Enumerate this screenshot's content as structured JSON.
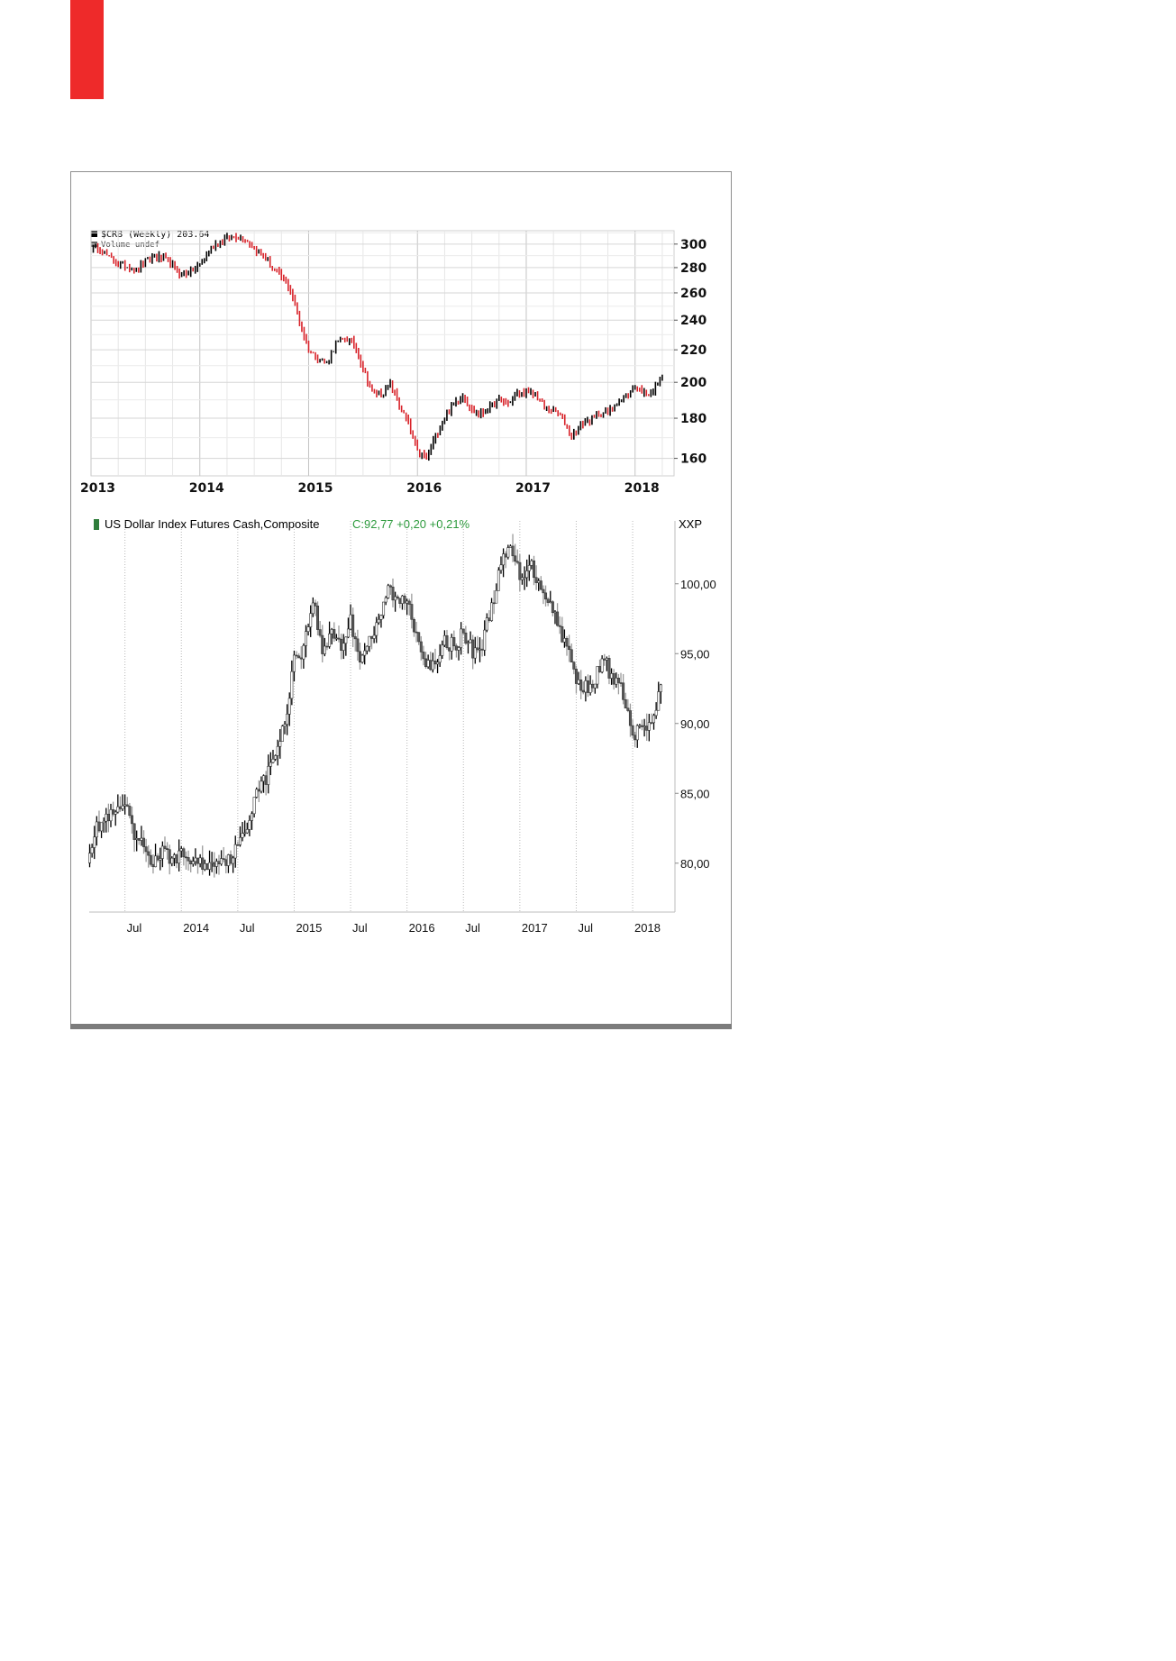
{
  "chart_data": [
    {
      "type": "candlestick",
      "legend": {
        "series": "$CRB (Weekly) 203.64",
        "volume": "Volume undef"
      },
      "x_ticks": [
        "2013",
        "2014",
        "2015",
        "2016",
        "2017",
        "2018"
      ],
      "y_ticks": [
        "300",
        "280",
        "260",
        "240",
        "220",
        "200",
        "180",
        "160"
      ],
      "ylim": [
        152,
        312
      ],
      "y_scale": "log",
      "grid": true,
      "colors": {
        "up": "#000000",
        "down": "#d8232a",
        "grid": "#dadada"
      },
      "series": [
        {
          "date": "2013-01",
          "value": 298
        },
        {
          "date": "2013-02",
          "value": 296
        },
        {
          "date": "2013-03",
          "value": 288
        },
        {
          "date": "2013-04",
          "value": 283
        },
        {
          "date": "2013-05",
          "value": 281
        },
        {
          "date": "2013-06",
          "value": 278
        },
        {
          "date": "2013-07",
          "value": 285
        },
        {
          "date": "2013-08",
          "value": 290
        },
        {
          "date": "2013-09",
          "value": 287
        },
        {
          "date": "2013-10",
          "value": 281
        },
        {
          "date": "2013-11",
          "value": 274
        },
        {
          "date": "2013-12",
          "value": 277
        },
        {
          "date": "2014-01",
          "value": 282
        },
        {
          "date": "2014-02",
          "value": 294
        },
        {
          "date": "2014-03",
          "value": 302
        },
        {
          "date": "2014-04",
          "value": 305
        },
        {
          "date": "2014-05",
          "value": 307
        },
        {
          "date": "2014-06",
          "value": 305
        },
        {
          "date": "2014-07",
          "value": 297
        },
        {
          "date": "2014-08",
          "value": 290
        },
        {
          "date": "2014-09",
          "value": 279
        },
        {
          "date": "2014-10",
          "value": 272
        },
        {
          "date": "2014-11",
          "value": 262
        },
        {
          "date": "2014-12",
          "value": 238
        },
        {
          "date": "2015-01",
          "value": 220
        },
        {
          "date": "2015-02",
          "value": 215
        },
        {
          "date": "2015-03",
          "value": 212
        },
        {
          "date": "2015-04",
          "value": 224
        },
        {
          "date": "2015-05",
          "value": 228
        },
        {
          "date": "2015-06",
          "value": 224
        },
        {
          "date": "2015-07",
          "value": 208
        },
        {
          "date": "2015-08",
          "value": 195
        },
        {
          "date": "2015-09",
          "value": 193
        },
        {
          "date": "2015-10",
          "value": 199
        },
        {
          "date": "2015-11",
          "value": 187
        },
        {
          "date": "2015-12",
          "value": 177
        },
        {
          "date": "2016-01",
          "value": 163
        },
        {
          "date": "2016-02",
          "value": 160
        },
        {
          "date": "2016-03",
          "value": 171
        },
        {
          "date": "2016-04",
          "value": 180
        },
        {
          "date": "2016-05",
          "value": 188
        },
        {
          "date": "2016-06",
          "value": 193
        },
        {
          "date": "2016-07",
          "value": 184
        },
        {
          "date": "2016-08",
          "value": 182
        },
        {
          "date": "2016-09",
          "value": 186
        },
        {
          "date": "2016-10",
          "value": 190
        },
        {
          "date": "2016-11",
          "value": 188
        },
        {
          "date": "2016-12",
          "value": 193
        },
        {
          "date": "2017-01",
          "value": 194
        },
        {
          "date": "2017-02",
          "value": 193
        },
        {
          "date": "2017-03",
          "value": 186
        },
        {
          "date": "2017-04",
          "value": 184
        },
        {
          "date": "2017-05",
          "value": 180
        },
        {
          "date": "2017-06",
          "value": 170
        },
        {
          "date": "2017-07",
          "value": 177
        },
        {
          "date": "2017-08",
          "value": 179
        },
        {
          "date": "2017-09",
          "value": 182
        },
        {
          "date": "2017-10",
          "value": 183
        },
        {
          "date": "2017-11",
          "value": 189
        },
        {
          "date": "2017-12",
          "value": 191
        },
        {
          "date": "2018-01",
          "value": 198
        },
        {
          "date": "2018-02",
          "value": 194
        },
        {
          "date": "2018-03",
          "value": 195
        },
        {
          "date": "2018-04",
          "value": 203.64
        }
      ]
    },
    {
      "type": "candlestick",
      "legend": {
        "name": "US Dollar Index Futures Cash,Composite",
        "values": "C:92,77 +0,20 +0,21%"
      },
      "axis_label": "XXP",
      "x_ticks": [
        "Jul",
        "2014",
        "Jul",
        "2015",
        "Jul",
        "2016",
        "Jul",
        "2017",
        "Jul",
        "2018"
      ],
      "y_ticks": [
        "100,00",
        "95,00",
        "90,00",
        "85,00",
        "80,00"
      ],
      "ylim": [
        76.5,
        104.5
      ],
      "grid": "vertical-dotted",
      "colors": {
        "up": "#000000",
        "down": "#9a9a9a",
        "legend_marker": "#2f7d3b",
        "legend_values": "#2e9b3e"
      },
      "series": [
        {
          "date": "2013-03",
          "value": 80.5
        },
        {
          "date": "2013-04",
          "value": 82.5
        },
        {
          "date": "2013-05",
          "value": 83.2
        },
        {
          "date": "2013-06",
          "value": 83.5
        },
        {
          "date": "2013-07",
          "value": 84.2
        },
        {
          "date": "2013-08",
          "value": 81.8
        },
        {
          "date": "2013-09",
          "value": 81.2
        },
        {
          "date": "2013-10",
          "value": 80.0
        },
        {
          "date": "2013-11",
          "value": 80.8
        },
        {
          "date": "2013-12",
          "value": 80.3
        },
        {
          "date": "2014-01",
          "value": 80.6
        },
        {
          "date": "2014-02",
          "value": 80.2
        },
        {
          "date": "2014-03",
          "value": 80.0
        },
        {
          "date": "2014-04",
          "value": 79.8
        },
        {
          "date": "2014-05",
          "value": 80.4
        },
        {
          "date": "2014-06",
          "value": 80.2
        },
        {
          "date": "2014-07",
          "value": 81.2
        },
        {
          "date": "2014-08",
          "value": 82.5
        },
        {
          "date": "2014-09",
          "value": 85.5
        },
        {
          "date": "2014-10",
          "value": 86.0
        },
        {
          "date": "2014-11",
          "value": 88.0
        },
        {
          "date": "2014-12",
          "value": 89.8
        },
        {
          "date": "2015-01",
          "value": 94.8
        },
        {
          "date": "2015-02",
          "value": 95.3
        },
        {
          "date": "2015-03",
          "value": 99.0
        },
        {
          "date": "2015-04",
          "value": 95.0
        },
        {
          "date": "2015-05",
          "value": 96.8
        },
        {
          "date": "2015-06",
          "value": 95.5
        },
        {
          "date": "2015-07",
          "value": 97.3
        },
        {
          "date": "2015-08",
          "value": 94.8
        },
        {
          "date": "2015-09",
          "value": 96.0
        },
        {
          "date": "2015-10",
          "value": 97.0
        },
        {
          "date": "2015-11",
          "value": 99.8
        },
        {
          "date": "2015-12",
          "value": 98.6
        },
        {
          "date": "2016-01",
          "value": 99.0
        },
        {
          "date": "2016-02",
          "value": 96.5
        },
        {
          "date": "2016-03",
          "value": 94.6
        },
        {
          "date": "2016-04",
          "value": 93.8
        },
        {
          "date": "2016-05",
          "value": 95.8
        },
        {
          "date": "2016-06",
          "value": 95.6
        },
        {
          "date": "2016-07",
          "value": 96.4
        },
        {
          "date": "2016-08",
          "value": 95.2
        },
        {
          "date": "2016-09",
          "value": 95.6
        },
        {
          "date": "2016-10",
          "value": 98.5
        },
        {
          "date": "2016-11",
          "value": 101.2
        },
        {
          "date": "2016-12",
          "value": 102.6
        },
        {
          "date": "2017-01",
          "value": 100.5
        },
        {
          "date": "2017-02",
          "value": 101.5
        },
        {
          "date": "2017-03",
          "value": 100.2
        },
        {
          "date": "2017-04",
          "value": 99.0
        },
        {
          "date": "2017-05",
          "value": 97.2
        },
        {
          "date": "2017-06",
          "value": 95.6
        },
        {
          "date": "2017-07",
          "value": 93.0
        },
        {
          "date": "2017-08",
          "value": 92.6
        },
        {
          "date": "2017-09",
          "value": 93.2
        },
        {
          "date": "2017-10",
          "value": 94.6
        },
        {
          "date": "2017-11",
          "value": 93.0
        },
        {
          "date": "2017-12",
          "value": 92.2
        },
        {
          "date": "2018-01",
          "value": 89.0
        },
        {
          "date": "2018-02",
          "value": 89.8
        },
        {
          "date": "2018-03",
          "value": 89.6
        },
        {
          "date": "2018-04",
          "value": 92.77
        }
      ]
    }
  ]
}
